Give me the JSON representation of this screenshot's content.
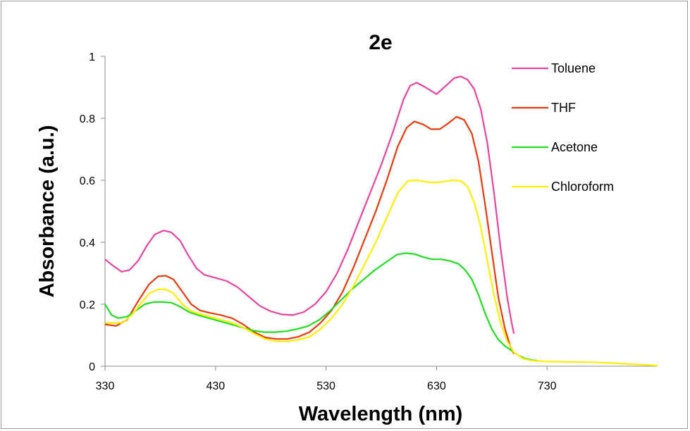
{
  "chart_data": {
    "type": "line",
    "title": "2e",
    "xlabel": "Wavelength (nm)",
    "ylabel": "Absorbance (a.u.)",
    "xlim": [
      330,
      830
    ],
    "ylim": [
      0,
      1
    ],
    "x_ticks": [
      330,
      430,
      530,
      630,
      730
    ],
    "y_ticks": [
      0,
      0.2,
      0.4,
      0.6,
      0.8,
      1
    ],
    "y_tick_labels": [
      "0",
      "0.2",
      "0.4",
      "0.6",
      "0.8",
      "1"
    ],
    "grid": false,
    "legend_position": "top-right",
    "series": [
      {
        "name": "Toluene",
        "color": "#e8449a",
        "points": [
          [
            330,
            0.345
          ],
          [
            337,
            0.325
          ],
          [
            345,
            0.305
          ],
          [
            352,
            0.31
          ],
          [
            360,
            0.34
          ],
          [
            368,
            0.39
          ],
          [
            375,
            0.425
          ],
          [
            383,
            0.438
          ],
          [
            390,
            0.432
          ],
          [
            398,
            0.405
          ],
          [
            405,
            0.36
          ],
          [
            413,
            0.315
          ],
          [
            420,
            0.295
          ],
          [
            430,
            0.285
          ],
          [
            440,
            0.275
          ],
          [
            450,
            0.255
          ],
          [
            460,
            0.225
          ],
          [
            470,
            0.195
          ],
          [
            480,
            0.177
          ],
          [
            490,
            0.167
          ],
          [
            500,
            0.165
          ],
          [
            510,
            0.175
          ],
          [
            520,
            0.2
          ],
          [
            530,
            0.24
          ],
          [
            540,
            0.3
          ],
          [
            550,
            0.38
          ],
          [
            560,
            0.47
          ],
          [
            570,
            0.56
          ],
          [
            580,
            0.65
          ],
          [
            590,
            0.75
          ],
          [
            600,
            0.86
          ],
          [
            606,
            0.905
          ],
          [
            612,
            0.915
          ],
          [
            620,
            0.9
          ],
          [
            630,
            0.878
          ],
          [
            640,
            0.91
          ],
          [
            646,
            0.93
          ],
          [
            652,
            0.935
          ],
          [
            658,
            0.925
          ],
          [
            664,
            0.895
          ],
          [
            670,
            0.83
          ],
          [
            676,
            0.72
          ],
          [
            682,
            0.56
          ],
          [
            688,
            0.38
          ],
          [
            694,
            0.22
          ],
          [
            698,
            0.14
          ],
          [
            700,
            0.105
          ]
        ]
      },
      {
        "name": "THF",
        "color": "#e83a0c",
        "points": [
          [
            330,
            0.135
          ],
          [
            340,
            0.13
          ],
          [
            350,
            0.15
          ],
          [
            360,
            0.21
          ],
          [
            370,
            0.265
          ],
          [
            378,
            0.29
          ],
          [
            385,
            0.292
          ],
          [
            392,
            0.28
          ],
          [
            400,
            0.24
          ],
          [
            408,
            0.2
          ],
          [
            416,
            0.18
          ],
          [
            425,
            0.172
          ],
          [
            435,
            0.165
          ],
          [
            445,
            0.155
          ],
          [
            455,
            0.135
          ],
          [
            465,
            0.11
          ],
          [
            475,
            0.093
          ],
          [
            485,
            0.088
          ],
          [
            495,
            0.088
          ],
          [
            505,
            0.095
          ],
          [
            515,
            0.11
          ],
          [
            525,
            0.14
          ],
          [
            535,
            0.18
          ],
          [
            545,
            0.24
          ],
          [
            555,
            0.32
          ],
          [
            565,
            0.41
          ],
          [
            575,
            0.5
          ],
          [
            585,
            0.6
          ],
          [
            595,
            0.71
          ],
          [
            603,
            0.77
          ],
          [
            610,
            0.79
          ],
          [
            618,
            0.78
          ],
          [
            625,
            0.765
          ],
          [
            633,
            0.765
          ],
          [
            641,
            0.785
          ],
          [
            648,
            0.805
          ],
          [
            655,
            0.795
          ],
          [
            662,
            0.75
          ],
          [
            668,
            0.66
          ],
          [
            674,
            0.52
          ],
          [
            680,
            0.37
          ],
          [
            686,
            0.22
          ],
          [
            692,
            0.12
          ],
          [
            697,
            0.06
          ],
          [
            700,
            0.04
          ]
        ]
      },
      {
        "name": "Acetone",
        "color": "#22dd22",
        "points": [
          [
            330,
            0.2
          ],
          [
            336,
            0.165
          ],
          [
            342,
            0.155
          ],
          [
            350,
            0.16
          ],
          [
            358,
            0.18
          ],
          [
            366,
            0.2
          ],
          [
            374,
            0.207
          ],
          [
            382,
            0.207
          ],
          [
            390,
            0.205
          ],
          [
            398,
            0.192
          ],
          [
            406,
            0.175
          ],
          [
            414,
            0.165
          ],
          [
            424,
            0.155
          ],
          [
            434,
            0.145
          ],
          [
            444,
            0.135
          ],
          [
            454,
            0.125
          ],
          [
            464,
            0.115
          ],
          [
            474,
            0.11
          ],
          [
            484,
            0.11
          ],
          [
            494,
            0.113
          ],
          [
            504,
            0.12
          ],
          [
            514,
            0.13
          ],
          [
            524,
            0.15
          ],
          [
            534,
            0.18
          ],
          [
            544,
            0.215
          ],
          [
            554,
            0.25
          ],
          [
            564,
            0.28
          ],
          [
            574,
            0.31
          ],
          [
            584,
            0.335
          ],
          [
            594,
            0.36
          ],
          [
            602,
            0.365
          ],
          [
            610,
            0.362
          ],
          [
            618,
            0.352
          ],
          [
            626,
            0.345
          ],
          [
            634,
            0.345
          ],
          [
            642,
            0.34
          ],
          [
            650,
            0.33
          ],
          [
            656,
            0.31
          ],
          [
            662,
            0.28
          ],
          [
            668,
            0.23
          ],
          [
            674,
            0.17
          ],
          [
            680,
            0.12
          ],
          [
            686,
            0.085
          ],
          [
            692,
            0.065
          ],
          [
            698,
            0.05
          ],
          [
            704,
            0.035
          ],
          [
            710,
            0.025
          ],
          [
            716,
            0.02
          ],
          [
            722,
            0.017
          ]
        ]
      },
      {
        "name": "Chloroform",
        "color": "#ffee00",
        "points": [
          [
            330,
            0.14
          ],
          [
            338,
            0.14
          ],
          [
            346,
            0.14
          ],
          [
            354,
            0.165
          ],
          [
            362,
            0.2
          ],
          [
            370,
            0.235
          ],
          [
            378,
            0.248
          ],
          [
            385,
            0.248
          ],
          [
            392,
            0.235
          ],
          [
            400,
            0.2
          ],
          [
            408,
            0.178
          ],
          [
            416,
            0.168
          ],
          [
            425,
            0.16
          ],
          [
            435,
            0.15
          ],
          [
            445,
            0.14
          ],
          [
            455,
            0.125
          ],
          [
            465,
            0.105
          ],
          [
            475,
            0.088
          ],
          [
            485,
            0.08
          ],
          [
            495,
            0.08
          ],
          [
            505,
            0.085
          ],
          [
            515,
            0.095
          ],
          [
            525,
            0.12
          ],
          [
            535,
            0.155
          ],
          [
            545,
            0.2
          ],
          [
            555,
            0.26
          ],
          [
            565,
            0.33
          ],
          [
            575,
            0.4
          ],
          [
            585,
            0.48
          ],
          [
            595,
            0.56
          ],
          [
            604,
            0.598
          ],
          [
            612,
            0.6
          ],
          [
            620,
            0.595
          ],
          [
            628,
            0.593
          ],
          [
            636,
            0.595
          ],
          [
            644,
            0.6
          ],
          [
            652,
            0.598
          ],
          [
            658,
            0.58
          ],
          [
            664,
            0.53
          ],
          [
            670,
            0.45
          ],
          [
            676,
            0.34
          ],
          [
            682,
            0.23
          ],
          [
            688,
            0.14
          ],
          [
            694,
            0.08
          ],
          [
            700,
            0.045
          ],
          [
            708,
            0.025
          ],
          [
            716,
            0.018
          ],
          [
            730,
            0.015
          ],
          [
            750,
            0.014
          ],
          [
            770,
            0.013
          ],
          [
            790,
            0.01
          ],
          [
            810,
            0.006
          ],
          [
            830,
            0.002
          ]
        ]
      }
    ]
  }
}
